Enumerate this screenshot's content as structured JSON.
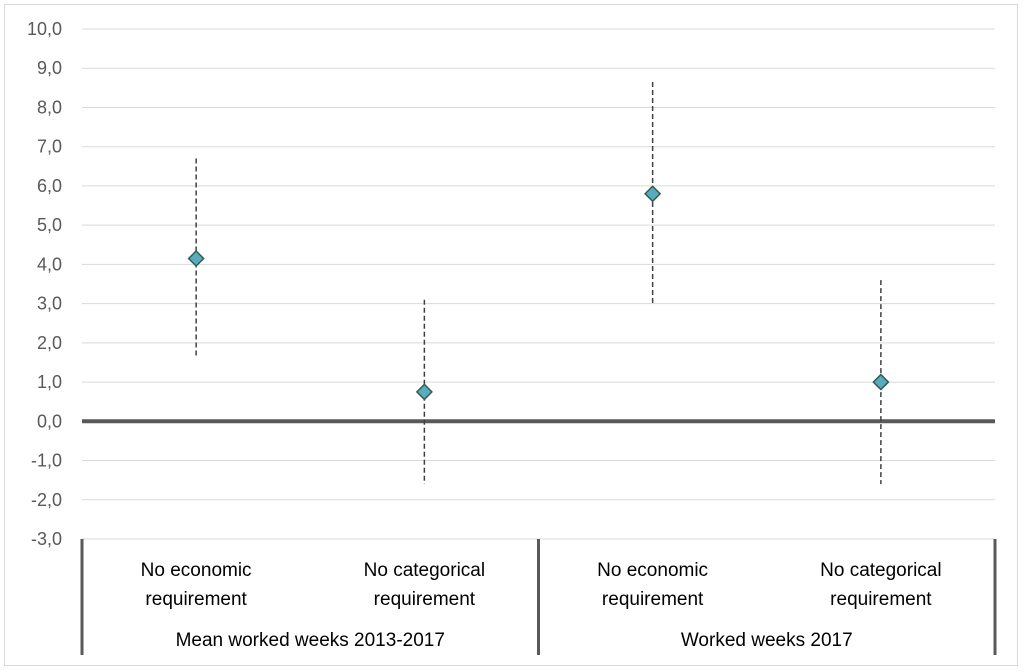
{
  "chart_data": {
    "type": "scatter",
    "title": "",
    "xlabel": "",
    "ylabel": "",
    "ylim": [
      -3.0,
      10.0
    ],
    "ytick_step": 1.0,
    "grid": true,
    "groups": [
      {
        "label": "Mean worked weeks 2013-2017",
        "categories": [
          [
            "No economic",
            "requirement"
          ],
          [
            "No categorical",
            "requirement"
          ]
        ]
      },
      {
        "label": "Worked weeks 2017",
        "categories": [
          [
            "No economic",
            "requirement"
          ],
          [
            "No categorical",
            "requirement"
          ]
        ]
      }
    ],
    "points": [
      {
        "category": "No economic requirement",
        "group": "Mean worked weeks 2013-2017",
        "value": 4.15,
        "lower": 1.6,
        "upper": 6.7
      },
      {
        "category": "No categorical requirement",
        "group": "Mean worked weeks 2013-2017",
        "value": 0.75,
        "lower": -1.6,
        "upper": 3.1
      },
      {
        "category": "No economic requirement",
        "group": "Worked weeks 2017",
        "value": 5.8,
        "lower": 3.0,
        "upper": 8.65
      },
      {
        "category": "No categorical requirement",
        "group": "Worked weeks 2017",
        "value": 1.0,
        "lower": -1.6,
        "upper": 3.6
      }
    ],
    "colors": {
      "marker_fill": "#5aabc0",
      "marker_stroke": "#2e5e50",
      "zero_line": "#595959",
      "grid": "#d9d9d9",
      "whisker": "#404040",
      "divider": "#595959"
    }
  }
}
